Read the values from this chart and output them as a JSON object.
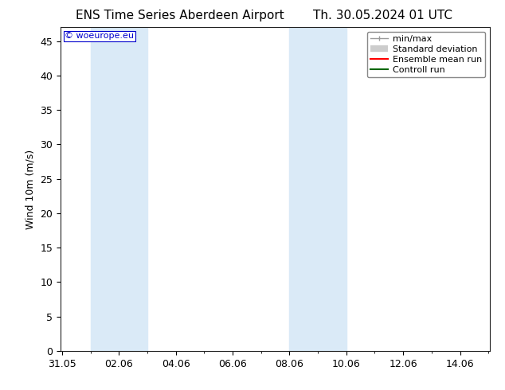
{
  "title_left": "ENS Time Series Aberdeen Airport",
  "title_right": "Th. 30.05.2024 01 UTC",
  "ylabel": "Wind 10m (m/s)",
  "ylim": [
    0,
    47
  ],
  "yticks": [
    0,
    5,
    10,
    15,
    20,
    25,
    30,
    35,
    40,
    45
  ],
  "background_color": "#ffffff",
  "plot_bg_color": "#ffffff",
  "watermark": "© woeurope.eu",
  "watermark_color": "#0000cc",
  "shaded_bands": [
    {
      "x_start": 1.0,
      "x_end": 3.0,
      "color": "#daeaf7"
    },
    {
      "x_start": 8.0,
      "x_end": 9.0,
      "color": "#daeaf7"
    },
    {
      "x_start": 9.0,
      "x_end": 10.0,
      "color": "#daeaf7"
    }
  ],
  "xtick_labels": [
    "31.05",
    "02.06",
    "04.06",
    "06.06",
    "08.06",
    "10.06",
    "12.06",
    "14.06"
  ],
  "xtick_positions": [
    0,
    2,
    4,
    6,
    8,
    10,
    12,
    14
  ],
  "xmin": -0.05,
  "xmax": 15.05,
  "legend_items": [
    {
      "label": "min/max",
      "color": "#999999",
      "lw": 1.0
    },
    {
      "label": "Standard deviation",
      "color": "#cccccc",
      "lw": 6
    },
    {
      "label": "Ensemble mean run",
      "color": "#ff0000",
      "lw": 1.5
    },
    {
      "label": "Controll run",
      "color": "#006600",
      "lw": 1.5
    }
  ],
  "title_fontsize": 11,
  "axis_fontsize": 9,
  "tick_fontsize": 9,
  "legend_fontsize": 8
}
